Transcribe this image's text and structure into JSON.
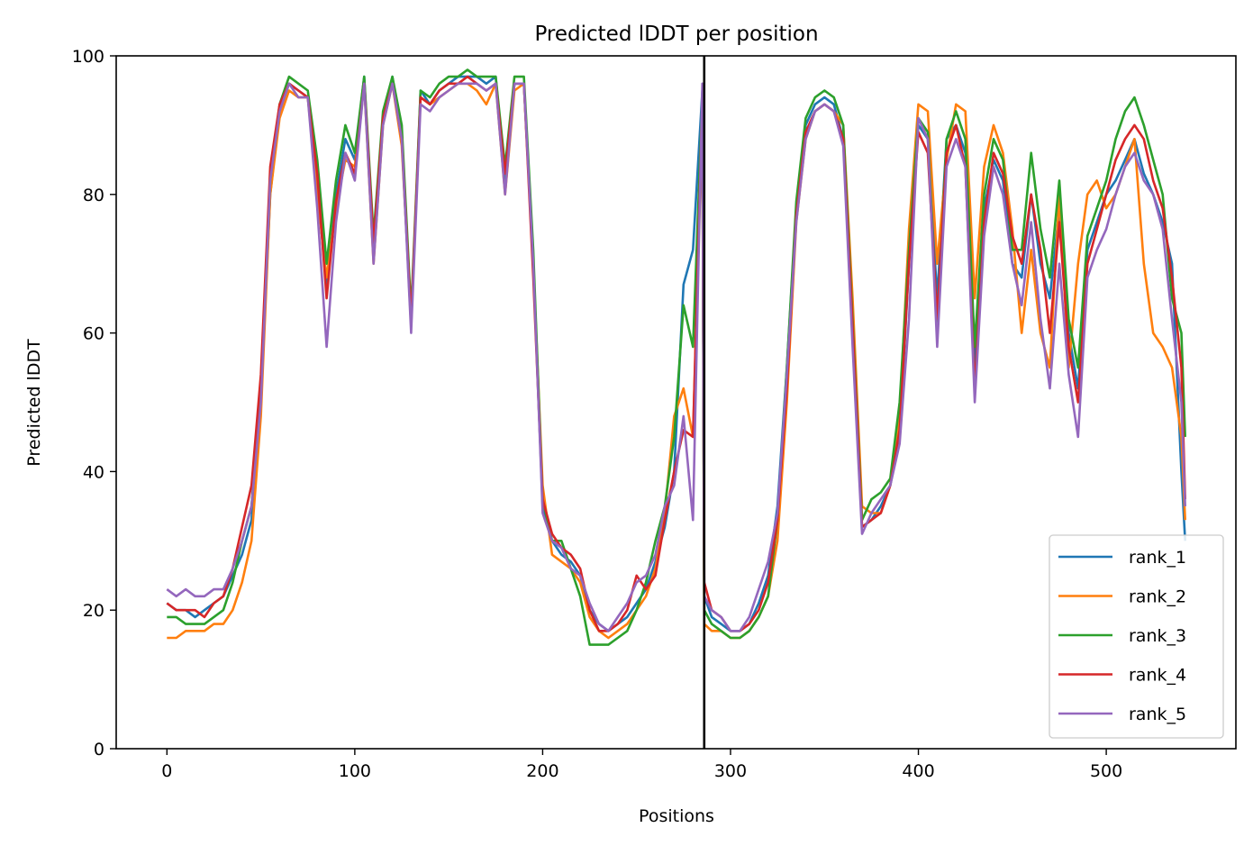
{
  "chart_data": {
    "type": "line",
    "title": "Predicted lDDT per position",
    "xlabel": "Positions",
    "ylabel": "Predicted lDDT",
    "xlim": [
      -27,
      569
    ],
    "ylim": [
      0,
      100
    ],
    "xticks": [
      0,
      100,
      200,
      300,
      400,
      500
    ],
    "yticks": [
      0,
      20,
      40,
      60,
      80,
      100
    ],
    "grid": false,
    "legend_position": "lower right",
    "vertical_line": {
      "x": 286,
      "color": "#000000"
    },
    "x": [
      0,
      5,
      10,
      15,
      20,
      25,
      30,
      35,
      40,
      45,
      50,
      55,
      60,
      65,
      70,
      75,
      80,
      85,
      90,
      95,
      100,
      105,
      110,
      115,
      120,
      125,
      130,
      135,
      140,
      145,
      150,
      155,
      160,
      165,
      170,
      175,
      180,
      185,
      190,
      195,
      200,
      205,
      210,
      215,
      220,
      225,
      230,
      235,
      240,
      245,
      250,
      255,
      260,
      265,
      270,
      275,
      280,
      285,
      286,
      290,
      295,
      300,
      305,
      310,
      315,
      320,
      325,
      330,
      335,
      340,
      345,
      350,
      355,
      360,
      365,
      370,
      375,
      380,
      385,
      390,
      395,
      400,
      405,
      410,
      415,
      420,
      425,
      430,
      435,
      440,
      445,
      450,
      455,
      460,
      465,
      470,
      475,
      480,
      485,
      490,
      495,
      500,
      505,
      510,
      515,
      520,
      525,
      530,
      535,
      540,
      542
    ],
    "series": [
      {
        "name": "rank_1",
        "color": "#1f77b4",
        "values": [
          21,
          20,
          20,
          19,
          20,
          21,
          22,
          25,
          28,
          33,
          50,
          80,
          92,
          96,
          95,
          94,
          82,
          66,
          80,
          88,
          85,
          97,
          72,
          91,
          97,
          88,
          61,
          95,
          93,
          95,
          96,
          97,
          97,
          97,
          96,
          97,
          82,
          96,
          96,
          70,
          35,
          30,
          28,
          27,
          25,
          20,
          18,
          17,
          18,
          19,
          21,
          23,
          27,
          32,
          40,
          67,
          72,
          95,
          22,
          19,
          18,
          17,
          17,
          18,
          21,
          25,
          35,
          55,
          78,
          90,
          93,
          94,
          93,
          88,
          60,
          32,
          33,
          35,
          38,
          45,
          70,
          90,
          88,
          65,
          88,
          90,
          86,
          55,
          78,
          85,
          82,
          70,
          68,
          80,
          70,
          65,
          78,
          60,
          52,
          72,
          76,
          80,
          82,
          85,
          88,
          83,
          80,
          76,
          70,
          40,
          30
        ]
      },
      {
        "name": "rank_2",
        "color": "#ff7f0e",
        "values": [
          16,
          16,
          17,
          17,
          17,
          18,
          18,
          20,
          24,
          30,
          48,
          80,
          91,
          95,
          94,
          94,
          80,
          68,
          78,
          85,
          84,
          96,
          70,
          90,
          96,
          87,
          62,
          94,
          93,
          94,
          95,
          96,
          96,
          95,
          93,
          96,
          80,
          95,
          96,
          70,
          38,
          28,
          27,
          26,
          24,
          19,
          17,
          16,
          17,
          18,
          20,
          22,
          26,
          34,
          48,
          52,
          45,
          92,
          18,
          17,
          17,
          16,
          16,
          17,
          19,
          22,
          30,
          50,
          76,
          88,
          92,
          93,
          92,
          90,
          65,
          35,
          34,
          34,
          38,
          48,
          75,
          93,
          92,
          70,
          85,
          93,
          92,
          65,
          84,
          90,
          86,
          75,
          60,
          72,
          60,
          55,
          80,
          55,
          70,
          80,
          82,
          78,
          80,
          84,
          88,
          70,
          60,
          58,
          55,
          45,
          33
        ]
      },
      {
        "name": "rank_3",
        "color": "#2ca02c",
        "values": [
          19,
          19,
          18,
          18,
          18,
          19,
          20,
          24,
          30,
          35,
          52,
          82,
          93,
          97,
          96,
          95,
          85,
          70,
          82,
          90,
          86,
          97,
          74,
          92,
          97,
          90,
          63,
          95,
          94,
          96,
          97,
          97,
          98,
          97,
          97,
          97,
          84,
          97,
          97,
          72,
          36,
          30,
          30,
          26,
          22,
          15,
          15,
          15,
          16,
          17,
          20,
          24,
          30,
          35,
          45,
          64,
          58,
          94,
          20,
          18,
          17,
          16,
          16,
          17,
          19,
          22,
          33,
          55,
          79,
          91,
          94,
          95,
          94,
          90,
          62,
          33,
          36,
          37,
          39,
          50,
          72,
          91,
          89,
          60,
          88,
          92,
          88,
          58,
          80,
          88,
          85,
          72,
          72,
          86,
          75,
          68,
          82,
          62,
          55,
          74,
          78,
          82,
          88,
          92,
          94,
          90,
          85,
          80,
          65,
          60,
          45
        ]
      },
      {
        "name": "rank_4",
        "color": "#d62728",
        "values": [
          21,
          20,
          20,
          20,
          19,
          21,
          22,
          26,
          32,
          38,
          54,
          84,
          93,
          96,
          95,
          94,
          83,
          65,
          79,
          86,
          83,
          96,
          73,
          91,
          96,
          88,
          62,
          94,
          93,
          95,
          96,
          96,
          97,
          96,
          95,
          96,
          83,
          96,
          96,
          68,
          36,
          31,
          29,
          28,
          26,
          20,
          17,
          17,
          18,
          20,
          25,
          23,
          25,
          33,
          40,
          46,
          45,
          94,
          24,
          20,
          19,
          17,
          17,
          18,
          20,
          24,
          33,
          52,
          77,
          89,
          92,
          93,
          92,
          88,
          61,
          32,
          33,
          34,
          38,
          46,
          70,
          89,
          86,
          62,
          86,
          90,
          84,
          52,
          76,
          86,
          83,
          74,
          70,
          80,
          72,
          60,
          76,
          58,
          50,
          70,
          75,
          80,
          85,
          88,
          90,
          88,
          82,
          78,
          68,
          55,
          36
        ]
      },
      {
        "name": "rank_5",
        "color": "#9467bd",
        "values": [
          23,
          22,
          23,
          22,
          22,
          23,
          23,
          26,
          30,
          35,
          50,
          82,
          92,
          96,
          94,
          94,
          78,
          58,
          76,
          86,
          82,
          96,
          70,
          90,
          96,
          88,
          60,
          93,
          92,
          94,
          95,
          96,
          96,
          96,
          95,
          96,
          80,
          96,
          96,
          70,
          34,
          30,
          29,
          26,
          25,
          21,
          18,
          17,
          19,
          21,
          24,
          25,
          28,
          35,
          38,
          48,
          33,
          96,
          22,
          20,
          19,
          17,
          17,
          19,
          23,
          27,
          34,
          54,
          76,
          88,
          92,
          93,
          92,
          87,
          58,
          31,
          34,
          36,
          38,
          44,
          62,
          91,
          88,
          58,
          84,
          88,
          84,
          50,
          74,
          84,
          80,
          70,
          64,
          76,
          62,
          52,
          70,
          54,
          45,
          68,
          72,
          75,
          80,
          84,
          86,
          82,
          80,
          75,
          62,
          50,
          35
        ]
      }
    ]
  }
}
